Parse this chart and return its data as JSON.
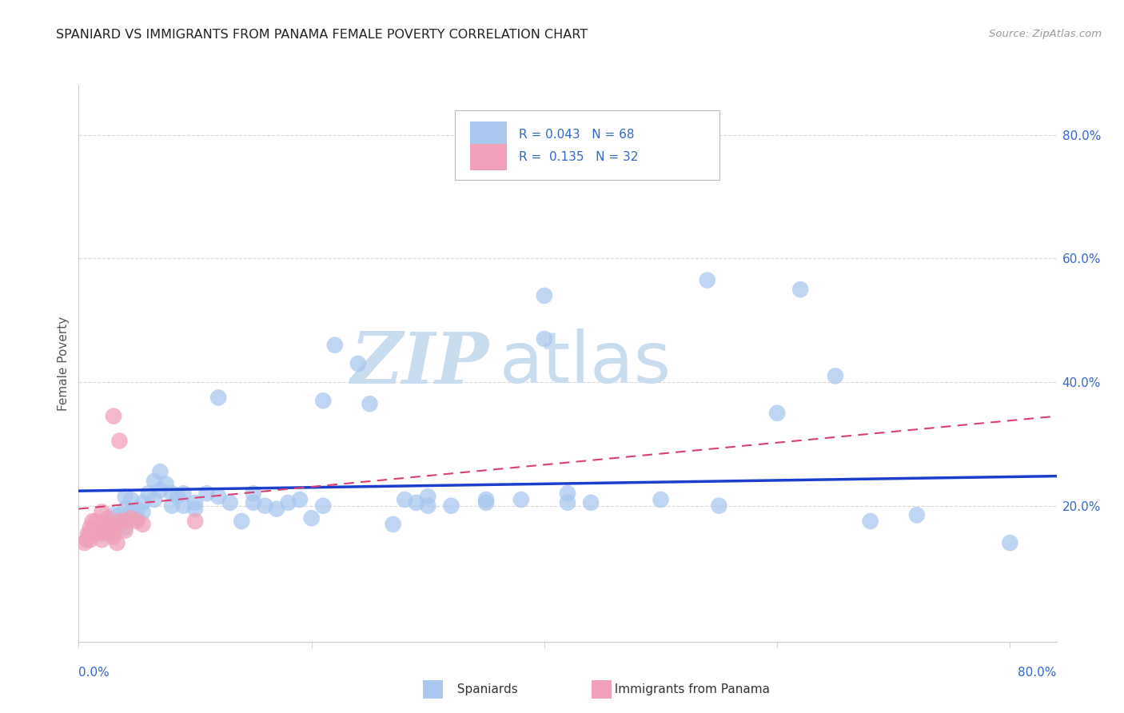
{
  "title": "SPANIARD VS IMMIGRANTS FROM PANAMA FEMALE POVERTY CORRELATION CHART",
  "source": "Source: ZipAtlas.com",
  "ylabel": "Female Poverty",
  "right_yticks": [
    "80.0%",
    "60.0%",
    "40.0%",
    "20.0%"
  ],
  "right_ytick_vals": [
    0.8,
    0.6,
    0.4,
    0.2
  ],
  "xlim": [
    0.0,
    0.84
  ],
  "ylim": [
    -0.02,
    0.88
  ],
  "plot_xlim": [
    0.0,
    0.84
  ],
  "legend_blue_label": "R = 0.043   N = 68",
  "legend_pink_label": "R =  0.135   N = 32",
  "legend_bottom_blue": "Spaniards",
  "legend_bottom_pink": "Immigrants from Panama",
  "blue_color": "#A8C8F0",
  "pink_color": "#F0A0B8",
  "blue_line_color": "#1A3FCC",
  "pink_line_color": "#D84070",
  "watermark_zip": "ZIP",
  "watermark_atlas": "atlas",
  "watermark_color": "#C8DCF0",
  "background_color": "#FFFFFF",
  "grid_color": "#D8D8D8",
  "axis_color": "#CCCCCC",
  "title_color": "#222222",
  "source_color": "#999999",
  "tick_label_color": "#3366CC",
  "label_color": "#555555",
  "blue_scatter": [
    [
      0.02,
      0.155
    ],
    [
      0.025,
      0.175
    ],
    [
      0.03,
      0.155
    ],
    [
      0.03,
      0.185
    ],
    [
      0.035,
      0.17
    ],
    [
      0.035,
      0.185
    ],
    [
      0.04,
      0.165
    ],
    [
      0.04,
      0.195
    ],
    [
      0.04,
      0.215
    ],
    [
      0.045,
      0.19
    ],
    [
      0.045,
      0.21
    ],
    [
      0.05,
      0.195
    ],
    [
      0.05,
      0.18
    ],
    [
      0.055,
      0.205
    ],
    [
      0.055,
      0.19
    ],
    [
      0.06,
      0.22
    ],
    [
      0.065,
      0.21
    ],
    [
      0.065,
      0.24
    ],
    [
      0.07,
      0.225
    ],
    [
      0.07,
      0.255
    ],
    [
      0.075,
      0.235
    ],
    [
      0.08,
      0.2
    ],
    [
      0.08,
      0.22
    ],
    [
      0.085,
      0.215
    ],
    [
      0.09,
      0.2
    ],
    [
      0.09,
      0.22
    ],
    [
      0.1,
      0.205
    ],
    [
      0.1,
      0.195
    ],
    [
      0.11,
      0.22
    ],
    [
      0.12,
      0.215
    ],
    [
      0.12,
      0.375
    ],
    [
      0.13,
      0.205
    ],
    [
      0.14,
      0.175
    ],
    [
      0.15,
      0.205
    ],
    [
      0.15,
      0.22
    ],
    [
      0.16,
      0.2
    ],
    [
      0.17,
      0.195
    ],
    [
      0.18,
      0.205
    ],
    [
      0.19,
      0.21
    ],
    [
      0.2,
      0.18
    ],
    [
      0.21,
      0.2
    ],
    [
      0.21,
      0.37
    ],
    [
      0.22,
      0.46
    ],
    [
      0.24,
      0.43
    ],
    [
      0.25,
      0.365
    ],
    [
      0.27,
      0.17
    ],
    [
      0.28,
      0.21
    ],
    [
      0.29,
      0.205
    ],
    [
      0.3,
      0.2
    ],
    [
      0.3,
      0.215
    ],
    [
      0.32,
      0.2
    ],
    [
      0.35,
      0.205
    ],
    [
      0.35,
      0.21
    ],
    [
      0.38,
      0.21
    ],
    [
      0.4,
      0.54
    ],
    [
      0.4,
      0.47
    ],
    [
      0.42,
      0.205
    ],
    [
      0.42,
      0.22
    ],
    [
      0.44,
      0.205
    ],
    [
      0.5,
      0.21
    ],
    [
      0.54,
      0.565
    ],
    [
      0.55,
      0.2
    ],
    [
      0.6,
      0.35
    ],
    [
      0.62,
      0.55
    ],
    [
      0.65,
      0.41
    ],
    [
      0.68,
      0.175
    ],
    [
      0.72,
      0.185
    ],
    [
      0.8,
      0.14
    ]
  ],
  "pink_scatter": [
    [
      0.005,
      0.14
    ],
    [
      0.007,
      0.145
    ],
    [
      0.008,
      0.155
    ],
    [
      0.01,
      0.165
    ],
    [
      0.01,
      0.155
    ],
    [
      0.01,
      0.145
    ],
    [
      0.012,
      0.175
    ],
    [
      0.013,
      0.165
    ],
    [
      0.015,
      0.175
    ],
    [
      0.015,
      0.155
    ],
    [
      0.015,
      0.165
    ],
    [
      0.018,
      0.16
    ],
    [
      0.02,
      0.19
    ],
    [
      0.02,
      0.16
    ],
    [
      0.02,
      0.145
    ],
    [
      0.022,
      0.17
    ],
    [
      0.025,
      0.18
    ],
    [
      0.025,
      0.165
    ],
    [
      0.025,
      0.155
    ],
    [
      0.028,
      0.17
    ],
    [
      0.03,
      0.345
    ],
    [
      0.03,
      0.165
    ],
    [
      0.03,
      0.15
    ],
    [
      0.033,
      0.14
    ],
    [
      0.035,
      0.305
    ],
    [
      0.035,
      0.175
    ],
    [
      0.04,
      0.175
    ],
    [
      0.04,
      0.16
    ],
    [
      0.045,
      0.18
    ],
    [
      0.05,
      0.175
    ],
    [
      0.055,
      0.17
    ],
    [
      0.1,
      0.175
    ]
  ],
  "blue_trend": [
    0.0,
    0.84,
    0.224,
    0.248
  ],
  "pink_trend": [
    0.0,
    0.84,
    0.195,
    0.345
  ]
}
